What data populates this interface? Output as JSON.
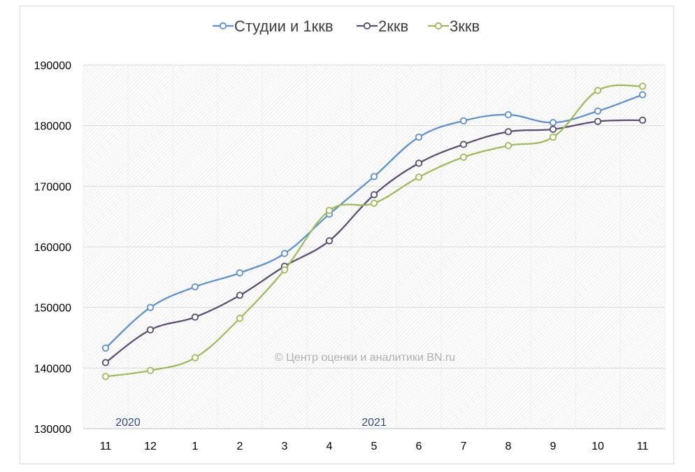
{
  "chart_data": {
    "type": "line",
    "categories": [
      "11",
      "12",
      "1",
      "2",
      "3",
      "4",
      "5",
      "6",
      "7",
      "8",
      "9",
      "10",
      "11"
    ],
    "year_labels": [
      {
        "text": "2020",
        "category_index": 0
      },
      {
        "text": "2021",
        "category_index": 6
      }
    ],
    "series": [
      {
        "name": "Студии и 1ккв",
        "color": "#5b8fd0",
        "values": [
          143300,
          150000,
          153400,
          155700,
          158900,
          165400,
          171600,
          178100,
          180800,
          181800,
          180500,
          182400,
          185100
        ]
      },
      {
        "name": "2ккв",
        "color": "#5b4a72",
        "values": [
          140900,
          146300,
          148400,
          152000,
          156800,
          161000,
          168600,
          173800,
          176900,
          179000,
          179400,
          180700,
          180900
        ]
      },
      {
        "name": "3ккв",
        "color": "#9bbb59",
        "values": [
          138600,
          139600,
          141700,
          148200,
          156200,
          166000,
          167200,
          171500,
          174800,
          176700,
          178100,
          185800,
          186500
        ]
      }
    ],
    "ylim": [
      130000,
      190000
    ],
    "yticks": [
      130000,
      140000,
      150000,
      160000,
      170000,
      180000,
      190000
    ],
    "legend_position": "top",
    "grid": true,
    "watermark": "© Центр оценки и аналитики BN.ru",
    "title": "",
    "xlabel": "",
    "ylabel": ""
  }
}
